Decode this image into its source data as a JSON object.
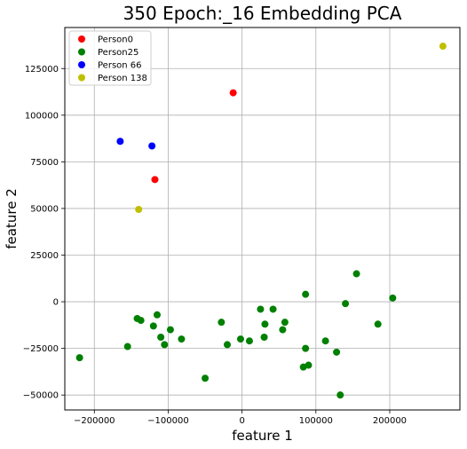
{
  "chart_data": {
    "type": "scatter",
    "title": "350 Epoch:_16 Embedding PCA",
    "xlabel": "feature 1",
    "ylabel": "feature 2",
    "xlim": [
      -240000,
      295000
    ],
    "ylim": [
      -58000,
      147000
    ],
    "xticks": [
      -200000,
      -100000,
      0,
      100000,
      200000
    ],
    "xtick_labels": [
      "−200000",
      "−100000",
      "0",
      "100000",
      "200000"
    ],
    "yticks": [
      -50000,
      -25000,
      0,
      25000,
      50000,
      75000,
      100000,
      125000
    ],
    "ytick_labels": [
      "−50000",
      "−25000",
      "0",
      "25000",
      "50000",
      "75000",
      "100000",
      "125000"
    ],
    "grid": true,
    "legend_position": "top-left",
    "series": [
      {
        "name": "Person0",
        "color": "#ff0000",
        "points": [
          [
            -12000,
            112000
          ],
          [
            -118000,
            65500
          ]
        ]
      },
      {
        "name": "Person25",
        "color": "#008000",
        "points": [
          [
            -220000,
            -30000
          ],
          [
            -155000,
            -24000
          ],
          [
            -142000,
            -9000
          ],
          [
            -137000,
            -10000
          ],
          [
            -120000,
            -13000
          ],
          [
            -115000,
            -7000
          ],
          [
            -110000,
            -19000
          ],
          [
            -105000,
            -23000
          ],
          [
            -97000,
            -15000
          ],
          [
            -82000,
            -20000
          ],
          [
            -50000,
            -41000
          ],
          [
            -28000,
            -11000
          ],
          [
            -20000,
            -23000
          ],
          [
            -2000,
            -20000
          ],
          [
            10000,
            -21000
          ],
          [
            25000,
            -4000
          ],
          [
            30000,
            -19000
          ],
          [
            31000,
            -12000
          ],
          [
            42000,
            -4000
          ],
          [
            55000,
            -15000
          ],
          [
            58000,
            -11000
          ],
          [
            83000,
            -35000
          ],
          [
            86000,
            -25000
          ],
          [
            86000,
            4000
          ],
          [
            90000,
            -34000
          ],
          [
            113000,
            -21000
          ],
          [
            128000,
            -27000
          ],
          [
            133000,
            -50000
          ],
          [
            140000,
            -1000
          ],
          [
            155000,
            15000
          ],
          [
            184000,
            -12000
          ],
          [
            204000,
            2000
          ]
        ]
      },
      {
        "name": "Person 66",
        "color": "#0000ff",
        "points": [
          [
            -165000,
            86000
          ],
          [
            -122000,
            83500
          ]
        ]
      },
      {
        "name": "Person 138",
        "color": "#bfbf00",
        "points": [
          [
            -140000,
            49500
          ],
          [
            272000,
            137000
          ]
        ]
      }
    ]
  }
}
